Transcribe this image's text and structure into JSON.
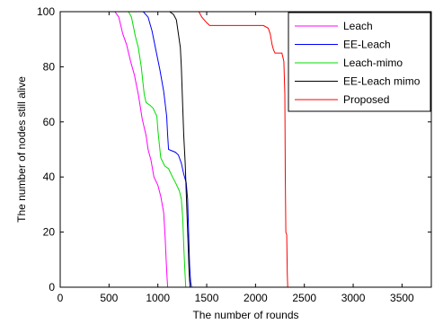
{
  "chart_data": {
    "type": "line",
    "xlabel": "The number of rounds",
    "ylabel": "The number of nodes still alive",
    "xlim": [
      0,
      3800
    ],
    "ylim": [
      0,
      100
    ],
    "xticks": [
      0,
      500,
      1000,
      1500,
      2000,
      2500,
      3000,
      3500
    ],
    "yticks": [
      0,
      20,
      40,
      60,
      80,
      100
    ],
    "grid": false,
    "legend_position": "top-right",
    "series": [
      {
        "name": "Leach",
        "color": "#ff00ff",
        "points": [
          [
            0,
            100
          ],
          [
            560,
            100
          ],
          [
            600,
            98
          ],
          [
            640,
            92
          ],
          [
            680,
            88
          ],
          [
            720,
            82
          ],
          [
            760,
            77
          ],
          [
            800,
            70
          ],
          [
            840,
            61
          ],
          [
            880,
            55
          ],
          [
            900,
            50
          ],
          [
            930,
            46
          ],
          [
            960,
            40
          ],
          [
            1000,
            37
          ],
          [
            1030,
            33
          ],
          [
            1060,
            27
          ],
          [
            1075,
            18
          ],
          [
            1085,
            10
          ],
          [
            1095,
            3
          ],
          [
            1100,
            0
          ]
        ]
      },
      {
        "name": "EE-Leach",
        "color": "#0000ff",
        "points": [
          [
            0,
            100
          ],
          [
            850,
            100
          ],
          [
            900,
            98
          ],
          [
            940,
            93
          ],
          [
            980,
            86
          ],
          [
            1020,
            79
          ],
          [
            1060,
            71
          ],
          [
            1090,
            62
          ],
          [
            1100,
            55
          ],
          [
            1110,
            50
          ],
          [
            1180,
            49
          ],
          [
            1210,
            48
          ],
          [
            1240,
            45
          ],
          [
            1265,
            41
          ],
          [
            1290,
            38
          ],
          [
            1305,
            32
          ],
          [
            1315,
            20
          ],
          [
            1325,
            8
          ],
          [
            1335,
            2
          ],
          [
            1345,
            0
          ]
        ]
      },
      {
        "name": "Leach-mimo",
        "color": "#00dd00",
        "points": [
          [
            0,
            100
          ],
          [
            700,
            100
          ],
          [
            730,
            98
          ],
          [
            770,
            91
          ],
          [
            800,
            87
          ],
          [
            830,
            80
          ],
          [
            860,
            70
          ],
          [
            880,
            67
          ],
          [
            920,
            66
          ],
          [
            950,
            65
          ],
          [
            990,
            62
          ],
          [
            1000,
            57
          ],
          [
            1030,
            47
          ],
          [
            1070,
            44
          ],
          [
            1110,
            43
          ],
          [
            1150,
            40
          ],
          [
            1180,
            38
          ],
          [
            1220,
            35
          ],
          [
            1240,
            32
          ],
          [
            1255,
            25
          ],
          [
            1265,
            15
          ],
          [
            1275,
            7
          ],
          [
            1285,
            0
          ]
        ]
      },
      {
        "name": "EE-Leach mimo",
        "color": "#000000",
        "points": [
          [
            0,
            100
          ],
          [
            1120,
            100
          ],
          [
            1160,
            99
          ],
          [
            1190,
            97
          ],
          [
            1210,
            92
          ],
          [
            1230,
            87
          ],
          [
            1240,
            80
          ],
          [
            1255,
            65
          ],
          [
            1265,
            55
          ],
          [
            1280,
            45
          ],
          [
            1290,
            35
          ],
          [
            1300,
            25
          ],
          [
            1310,
            15
          ],
          [
            1320,
            5
          ],
          [
            1330,
            0
          ]
        ]
      },
      {
        "name": "Proposed",
        "color": "#ff0000",
        "points": [
          [
            0,
            100
          ],
          [
            1420,
            100
          ],
          [
            1450,
            98
          ],
          [
            1500,
            96
          ],
          [
            1530,
            95
          ],
          [
            2080,
            95
          ],
          [
            2130,
            94
          ],
          [
            2150,
            92
          ],
          [
            2170,
            88
          ],
          [
            2185,
            86
          ],
          [
            2200,
            85
          ],
          [
            2270,
            85
          ],
          [
            2290,
            82
          ],
          [
            2300,
            70
          ],
          [
            2305,
            40
          ],
          [
            2310,
            20
          ],
          [
            2320,
            19
          ],
          [
            2325,
            5
          ],
          [
            2330,
            0
          ]
        ]
      }
    ]
  }
}
